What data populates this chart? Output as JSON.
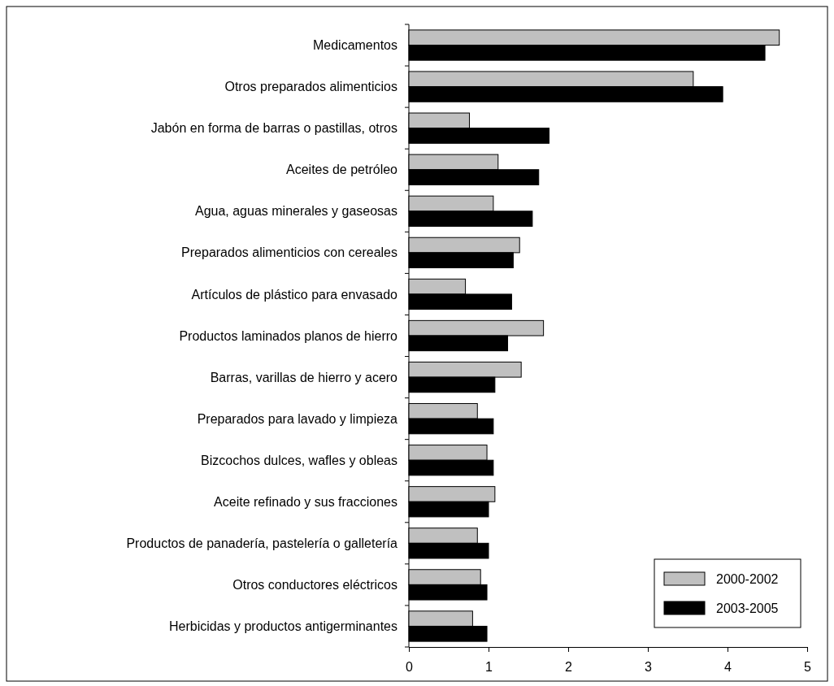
{
  "chart_data": {
    "type": "bar",
    "orientation": "horizontal",
    "categories": [
      "Medicamentos",
      "Otros preparados alimenticios",
      "Jabón en forma de barras o pastillas, otros",
      "Aceites de petróleo",
      "Agua, aguas minerales y gaseosas",
      "Preparados alimenticios con cereales",
      "Artículos de plástico para envasado",
      "Productos laminados planos de hierro",
      "Barras, varillas de hierro y acero",
      "Preparados para lavado y limpieza",
      "Bizcochos dulces, wafles y obleas",
      "Aceite refinado y sus fracciones",
      "Productos de panadería, pastelería o galletería",
      "Otros conductores eléctricos",
      "Herbicidas y productos antigerminantes"
    ],
    "series": [
      {
        "name": "2000-2002",
        "color": "#c0c0c0",
        "values": [
          4.65,
          3.57,
          0.76,
          1.12,
          1.06,
          1.39,
          0.71,
          1.69,
          1.41,
          0.86,
          0.98,
          1.08,
          0.86,
          0.9,
          0.8
        ]
      },
      {
        "name": "2003-2005",
        "color": "#000000",
        "values": [
          4.47,
          3.94,
          1.76,
          1.63,
          1.55,
          1.31,
          1.29,
          1.24,
          1.08,
          1.06,
          1.06,
          1.0,
          1.0,
          0.98,
          0.98
        ]
      }
    ],
    "xlim": [
      0,
      5
    ],
    "xticks": [
      0,
      1,
      2,
      3,
      4,
      5
    ],
    "grid": false,
    "legend": "bottom right"
  }
}
